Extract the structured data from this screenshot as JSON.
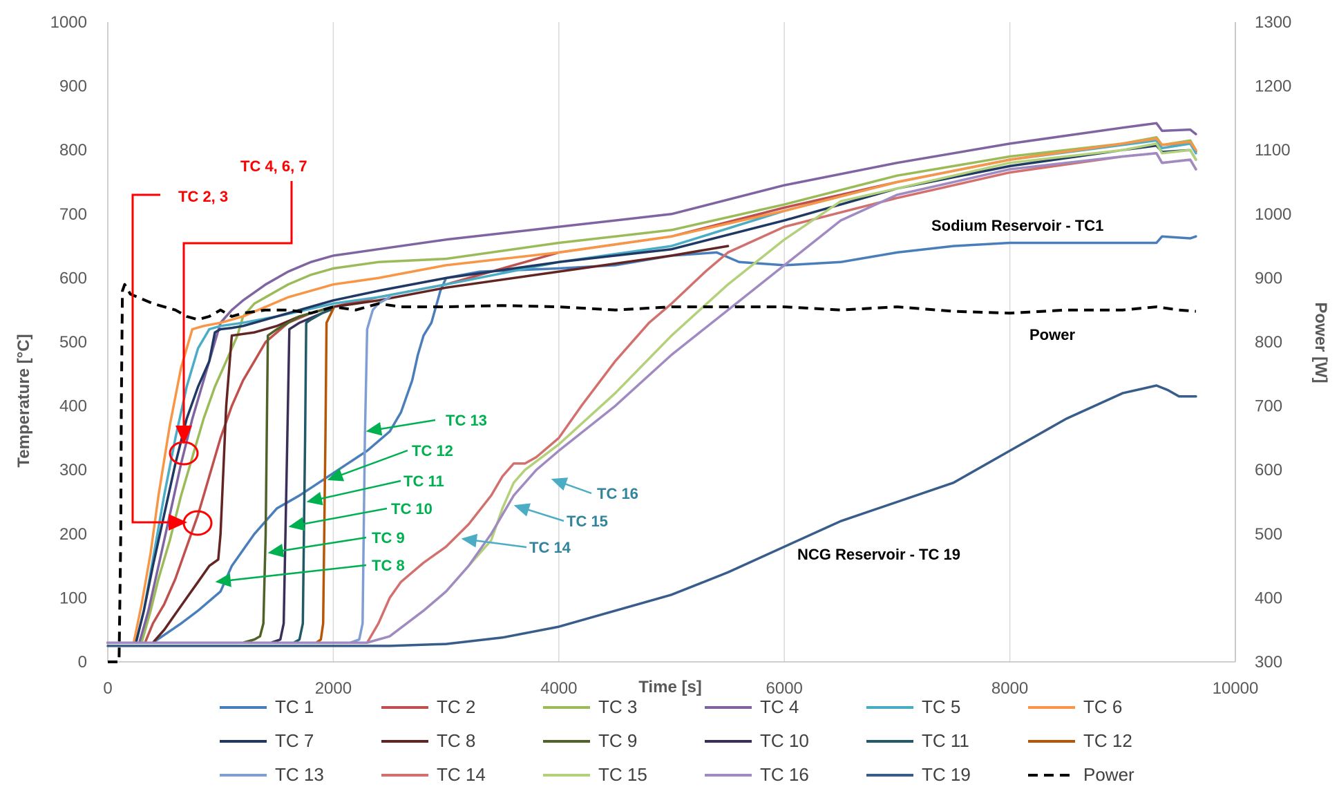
{
  "chart_data": {
    "type": "line",
    "title": "",
    "xlabel": "Time [s]",
    "ylabel": "Temperature [°C]",
    "y2label": "Power [W]",
    "xlim": [
      0,
      10000
    ],
    "ylim": [
      0,
      1000
    ],
    "y2lim": [
      300,
      1300
    ],
    "xticks": [
      "0",
      "2000",
      "4000",
      "6000",
      "8000",
      "10000"
    ],
    "yticks": [
      "0",
      "100",
      "200",
      "300",
      "400",
      "500",
      "600",
      "700",
      "800",
      "900",
      "1000"
    ],
    "y2ticks": [
      "300",
      "400",
      "500",
      "600",
      "700",
      "800",
      "900",
      "1000",
      "1100",
      "1200",
      "1300"
    ],
    "grid": "vertical",
    "legend_position": "bottom",
    "series": [
      {
        "name": "TC 1",
        "color": "#4a7ebb",
        "x": [
          0,
          400,
          650,
          800,
          900,
          1000,
          1100,
          1300,
          1500,
          1700,
          2000,
          2300,
          2500,
          2600,
          2700,
          2750,
          2800,
          2870,
          2950,
          3000,
          3300,
          4000,
          4500,
          5000,
          5400,
          5600,
          6000,
          6500,
          7000,
          7500,
          8000,
          8500,
          9000,
          9300,
          9350,
          9600,
          9650
        ],
        "y": [
          30,
          30,
          60,
          80,
          95,
          110,
          150,
          200,
          240,
          260,
          295,
          330,
          360,
          390,
          440,
          480,
          510,
          530,
          580,
          600,
          610,
          615,
          620,
          635,
          640,
          625,
          620,
          625,
          640,
          650,
          655,
          655,
          655,
          655,
          665,
          662,
          665
        ]
      },
      {
        "name": "TC 2",
        "color": "#c0504d",
        "x": [
          0,
          330,
          400,
          500,
          600,
          700,
          800,
          900,
          1000,
          1100,
          1200,
          1300,
          1400,
          1600,
          1800,
          2000,
          2400,
          3000,
          4000,
          5000,
          6000,
          7000,
          8000,
          9000,
          9300,
          9350,
          9600,
          9650
        ],
        "y": [
          30,
          30,
          60,
          90,
          130,
          180,
          230,
          290,
          350,
          400,
          440,
          470,
          500,
          530,
          545,
          555,
          570,
          590,
          640,
          665,
          710,
          750,
          785,
          810,
          818,
          808,
          812,
          798
        ]
      },
      {
        "name": "TC 3",
        "color": "#9bbb59",
        "x": [
          0,
          300,
          380,
          450,
          550,
          650,
          750,
          850,
          950,
          1050,
          1150,
          1200,
          1300,
          1400,
          1500,
          1600,
          1800,
          2000,
          2400,
          3000,
          4000,
          5000,
          6000,
          7000,
          8000,
          9000,
          9300,
          9350,
          9600,
          9650
        ],
        "y": [
          30,
          30,
          80,
          130,
          190,
          260,
          320,
          380,
          430,
          470,
          510,
          540,
          560,
          570,
          580,
          590,
          605,
          615,
          625,
          630,
          655,
          675,
          715,
          760,
          790,
          810,
          820,
          808,
          815,
          800
        ]
      },
      {
        "name": "TC 4",
        "color": "#8064a2",
        "x": [
          0,
          280,
          360,
          450,
          550,
          650,
          750,
          850,
          950,
          1000,
          1100,
          1200,
          1400,
          1600,
          1800,
          2000,
          2400,
          3000,
          4000,
          5000,
          6000,
          7000,
          8000,
          9000,
          9300,
          9350,
          9600,
          9650
        ],
        "y": [
          30,
          30,
          80,
          150,
          230,
          310,
          380,
          440,
          500,
          530,
          550,
          565,
          590,
          610,
          625,
          635,
          645,
          660,
          680,
          700,
          745,
          780,
          810,
          835,
          842,
          830,
          832,
          825
        ]
      },
      {
        "name": "TC 5",
        "color": "#4bacc6",
        "x": [
          0,
          250,
          320,
          400,
          500,
          600,
          700,
          800,
          900,
          1000,
          1200,
          1500,
          2000,
          2400,
          3000,
          4000,
          5000,
          6000,
          7000,
          8000,
          9000,
          9300,
          9350,
          9600,
          9650
        ],
        "y": [
          30,
          30,
          80,
          160,
          260,
          350,
          430,
          490,
          520,
          525,
          530,
          540,
          560,
          570,
          590,
          625,
          650,
          705,
          750,
          785,
          808,
          815,
          803,
          810,
          795
        ]
      },
      {
        "name": "TC 6",
        "color": "#f79646",
        "x": [
          0,
          230,
          300,
          380,
          450,
          550,
          650,
          750,
          850,
          1000,
          1200,
          1400,
          1600,
          1800,
          2000,
          2400,
          3000,
          4000,
          5000,
          6000,
          7000,
          8000,
          9000,
          9300,
          9350,
          9600,
          9650
        ],
        "y": [
          30,
          30,
          90,
          170,
          260,
          370,
          460,
          520,
          525,
          530,
          540,
          555,
          570,
          580,
          590,
          600,
          620,
          640,
          665,
          705,
          750,
          785,
          810,
          818,
          808,
          813,
          800
        ]
      },
      {
        "name": "TC 7",
        "color": "#1f3864",
        "x": [
          0,
          250,
          320,
          400,
          500,
          600,
          700,
          800,
          900,
          950,
          1000,
          1100,
          1200,
          1400,
          1600,
          1800,
          2000,
          2400,
          3000,
          4000,
          5000,
          6000,
          7000,
          8000,
          9000,
          9300,
          9350,
          9600,
          9650
        ],
        "y": [
          30,
          30,
          80,
          150,
          230,
          310,
          380,
          430,
          470,
          515,
          520,
          522,
          525,
          535,
          545,
          555,
          565,
          580,
          600,
          625,
          645,
          690,
          740,
          775,
          800,
          807,
          797,
          800,
          785
        ]
      },
      {
        "name": "TC 8",
        "color": "#632523",
        "x": [
          0,
          400,
          500,
          600,
          700,
          800,
          900,
          980,
          1000,
          1050,
          1100,
          1300,
          1500,
          1700,
          1900,
          2000,
          2400,
          3000,
          4000,
          5000,
          5500
        ],
        "y": [
          30,
          30,
          50,
          75,
          100,
          125,
          150,
          160,
          200,
          400,
          510,
          515,
          525,
          540,
          550,
          555,
          565,
          585,
          610,
          635,
          650
        ]
      },
      {
        "name": "TC 9",
        "color": "#4f6228",
        "x": [
          0,
          1200,
          1300,
          1350,
          1380,
          1400,
          1420,
          1500,
          1700,
          1900,
          2000
        ],
        "y": [
          30,
          30,
          35,
          40,
          60,
          200,
          510,
          520,
          540,
          550,
          555
        ]
      },
      {
        "name": "TC 10",
        "color": "#3b2e58",
        "x": [
          0,
          1450,
          1530,
          1560,
          1590,
          1610,
          1700,
          1900,
          2000
        ],
        "y": [
          30,
          30,
          35,
          60,
          330,
          520,
          530,
          545,
          552
        ]
      },
      {
        "name": "TC 11",
        "color": "#215968",
        "x": [
          0,
          1650,
          1700,
          1730,
          1750,
          1760,
          1800,
          1900,
          2000
        ],
        "y": [
          30,
          30,
          35,
          60,
          350,
          530,
          535,
          545,
          552
        ]
      },
      {
        "name": "TC 12",
        "color": "#b65708",
        "x": [
          0,
          1850,
          1890,
          1910,
          1930,
          1940,
          2000
        ],
        "y": [
          30,
          30,
          35,
          60,
          350,
          530,
          552
        ]
      },
      {
        "name": "TC 13",
        "color": "#7f9ed4",
        "x": [
          0,
          2150,
          2230,
          2260,
          2280,
          2300,
          2350,
          2400,
          2500
        ],
        "y": [
          30,
          30,
          35,
          60,
          350,
          520,
          550,
          560,
          570
        ]
      },
      {
        "name": "TC 14",
        "color": "#d2706e",
        "x": [
          0,
          2300,
          2400,
          2500,
          2600,
          2700,
          2800,
          3000,
          3200,
          3400,
          3500,
          3600,
          3700,
          3800,
          4000,
          4200,
          4500,
          4800,
          5000,
          5300,
          5500,
          6000,
          7000,
          8000,
          9000,
          9300,
          9350,
          9600,
          9650
        ],
        "y": [
          30,
          30,
          60,
          100,
          125,
          140,
          155,
          180,
          215,
          260,
          290,
          310,
          310,
          320,
          350,
          400,
          470,
          530,
          560,
          610,
          640,
          680,
          725,
          765,
          790,
          795,
          780,
          785,
          770
        ]
      },
      {
        "name": "TC 15",
        "color": "#b3d17a",
        "x": [
          0,
          2300,
          2500,
          2800,
          3000,
          3200,
          3400,
          3500,
          3600,
          3700,
          4000,
          4500,
          5000,
          5500,
          6000,
          6500,
          7000,
          8000,
          9000,
          9300,
          9350,
          9600,
          9650
        ],
        "y": [
          30,
          30,
          40,
          80,
          110,
          150,
          190,
          240,
          280,
          300,
          340,
          420,
          510,
          590,
          660,
          720,
          740,
          780,
          800,
          810,
          795,
          800,
          785
        ]
      },
      {
        "name": "TC 16",
        "color": "#9f8ac2",
        "x": [
          0,
          2300,
          2500,
          2800,
          3000,
          3200,
          3400,
          3600,
          3800,
          4000,
          4500,
          5000,
          5500,
          6000,
          6500,
          7000,
          8000,
          9000,
          9300,
          9350,
          9600,
          9650
        ],
        "y": [
          30,
          30,
          40,
          80,
          110,
          150,
          200,
          260,
          300,
          330,
          400,
          480,
          550,
          620,
          690,
          730,
          770,
          790,
          795,
          780,
          785,
          770
        ]
      },
      {
        "name": "TC 19",
        "color": "#385d8a",
        "x": [
          0,
          1000,
          2000,
          2500,
          3000,
          3500,
          4000,
          4500,
          5000,
          5500,
          6000,
          6500,
          7000,
          7500,
          8000,
          8500,
          9000,
          9300,
          9400,
          9500,
          9650
        ],
        "y": [
          25,
          25,
          25,
          25,
          28,
          38,
          55,
          80,
          105,
          140,
          180,
          220,
          250,
          280,
          330,
          380,
          420,
          432,
          425,
          415,
          415
        ]
      },
      {
        "name": "Power",
        "color": "#000000",
        "axis": "right",
        "dash": true,
        "x": [
          0,
          100,
          115,
          120,
          130,
          150,
          200,
          400,
          500,
          600,
          700,
          800,
          900,
          1000,
          1100,
          1200,
          1400,
          1600,
          1800,
          2000,
          2200,
          2400,
          2600,
          3000,
          3500,
          4000,
          4500,
          5000,
          5500,
          6000,
          6500,
          7000,
          7500,
          8000,
          8500,
          9000,
          9300,
          9500,
          9650
        ],
        "y": [
          300,
          300,
          500,
          700,
          880,
          890,
          875,
          860,
          855,
          850,
          840,
          835,
          840,
          850,
          840,
          845,
          850,
          850,
          845,
          855,
          850,
          860,
          855,
          855,
          857,
          855,
          850,
          855,
          855,
          855,
          850,
          855,
          848,
          845,
          850,
          850,
          855,
          850,
          848
        ]
      }
    ],
    "annotations": [
      {
        "text": "TC 2, 3",
        "color": "#ff0000"
      },
      {
        "text": "TC 4, 6, 7",
        "color": "#ff0000"
      },
      {
        "text": "TC 13",
        "color": "#00b050"
      },
      {
        "text": "TC 12",
        "color": "#00b050"
      },
      {
        "text": "TC 11",
        "color": "#00b050"
      },
      {
        "text": "TC 10",
        "color": "#00b050"
      },
      {
        "text": "TC 9",
        "color": "#00b050"
      },
      {
        "text": "TC 8",
        "color": "#00b050"
      },
      {
        "text": "TC 16",
        "color": "#31849b"
      },
      {
        "text": "TC 15",
        "color": "#31849b"
      },
      {
        "text": "TC 14",
        "color": "#31849b"
      },
      {
        "text": "Sodium Reservoir - TC1",
        "color": "#000000"
      },
      {
        "text": "Power",
        "color": "#000000"
      },
      {
        "text": "NCG Reservoir - TC 19",
        "color": "#000000"
      }
    ]
  }
}
